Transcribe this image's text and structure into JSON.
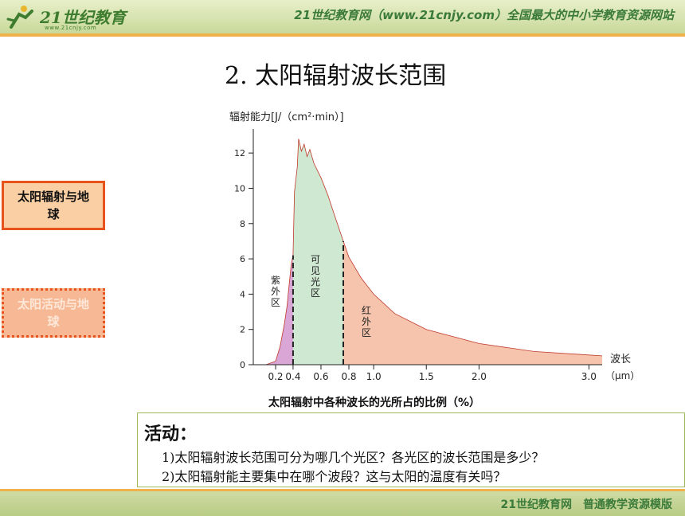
{
  "header": {
    "logo_text": "21世纪教育",
    "logo_url": "www.21cnjy.com",
    "slogan": "21世纪教育网（www.21cnjy.com）全国最大的中小学教育资源网站"
  },
  "slide": {
    "title": "2. 太阳辐射波长范围"
  },
  "sidebar": {
    "items": [
      {
        "label": "太阳辐射与地球",
        "active": true
      },
      {
        "label": "太阳活动与地球",
        "active": false
      }
    ]
  },
  "chart_data": {
    "type": "area",
    "ylabel": "辐射能力[J/（cm²·min）]",
    "xlabel": "波长（μm）",
    "caption": "太阳辐射中各种波长的光所占的比例（%）",
    "ylim": [
      0,
      13
    ],
    "xlim": [
      0.13,
      3.08
    ],
    "yticks": [
      0,
      2,
      4,
      6,
      8,
      10,
      12
    ],
    "xticks": [
      {
        "v": 0.2,
        "label": "0.2"
      },
      {
        "v": 0.4,
        "label": "0.4"
      },
      {
        "v": 0.6,
        "label": "0.6"
      },
      {
        "v": 0.8,
        "label": "0.8"
      },
      {
        "v": 1.0,
        "label": "1.0"
      },
      {
        "v": 1.5,
        "label": "1.5"
      },
      {
        "v": 2.0,
        "label": "2.0"
      },
      {
        "v": 3.0,
        "label": "3.0"
      }
    ],
    "boundaries": [
      0.4,
      0.76
    ],
    "x_scale_breakpoints": [
      [
        0.13,
        0.13
      ],
      [
        0.2,
        0.2
      ],
      [
        0.4,
        0.4
      ],
      [
        0.6,
        0.6
      ],
      [
        0.8,
        0.8
      ],
      [
        1.0,
        1.0
      ],
      [
        1.5,
        1.5
      ],
      [
        2.0,
        2.0
      ],
      [
        3.0,
        3.0
      ],
      [
        3.08,
        3.08
      ]
    ],
    "series": [
      {
        "region": "uv",
        "label": "紫外区",
        "color": "#d9a6d6",
        "points": [
          [
            0.17,
            0
          ],
          [
            0.2,
            0.2
          ],
          [
            0.25,
            1.0
          ],
          [
            0.3,
            2.3
          ],
          [
            0.33,
            3.3
          ],
          [
            0.36,
            4.8
          ],
          [
            0.38,
            5.7
          ],
          [
            0.4,
            6.2
          ]
        ]
      },
      {
        "region": "visible",
        "label": "可见光区",
        "color": "#cfe8d2",
        "points": [
          [
            0.4,
            6.2
          ],
          [
            0.41,
            9.8
          ],
          [
            0.43,
            11.2
          ],
          [
            0.44,
            12.8
          ],
          [
            0.46,
            12.1
          ],
          [
            0.48,
            12.5
          ],
          [
            0.5,
            11.8
          ],
          [
            0.52,
            12.2
          ],
          [
            0.55,
            11.4
          ],
          [
            0.6,
            10.6
          ],
          [
            0.65,
            9.6
          ],
          [
            0.7,
            8.4
          ],
          [
            0.76,
            7.0
          ]
        ]
      },
      {
        "region": "ir",
        "label": "红外区",
        "color": "#f6c4ac",
        "points": [
          [
            0.76,
            7.0
          ],
          [
            0.8,
            6.1
          ],
          [
            0.9,
            4.9
          ],
          [
            1.0,
            4.0
          ],
          [
            1.2,
            2.9
          ],
          [
            1.5,
            2.0
          ],
          [
            2.0,
            1.2
          ],
          [
            2.5,
            0.75
          ],
          [
            3.0,
            0.55
          ],
          [
            3.08,
            0.5
          ]
        ]
      }
    ]
  },
  "activity": {
    "title": "活动：",
    "questions": [
      "1)太阳辐射波长范围可分为哪几个光区？各光区的波长范围是多少？",
      "2)太阳辐射能主要集中在哪个波段？这与太阳的温度有关吗？"
    ]
  },
  "footer": {
    "text": "21世纪教育网　普通教学资源模版"
  }
}
